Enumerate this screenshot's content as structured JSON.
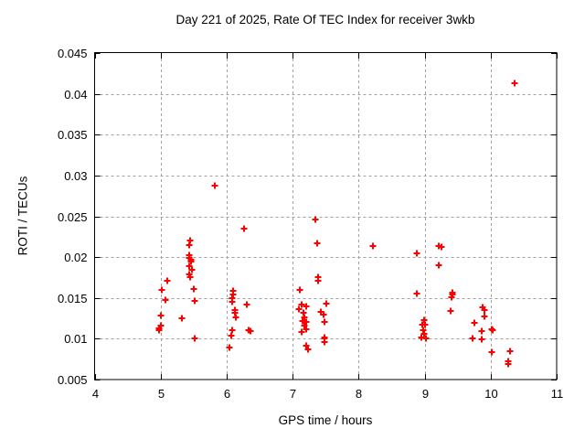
{
  "figure": {
    "title": "Day 221 of 2025, Rate Of TEC Index for receiver 3wkb",
    "xlabel": "GPS time / hours",
    "ylabel": "ROTI / TECUs"
  },
  "chart_data": {
    "type": "scatter",
    "title": "Day 221 of 2025, Rate Of TEC Index for receiver 3wkb",
    "xlabel": "GPS time / hours",
    "ylabel": "ROTI / TECUs",
    "xlim": [
      4,
      11
    ],
    "ylim": [
      0.005,
      0.045
    ],
    "x_tick_values": [
      4,
      5,
      6,
      7,
      8,
      9,
      10,
      11
    ],
    "x_tick_labels": [
      "4",
      "5",
      "6",
      "7",
      "8",
      "9",
      "10",
      "11"
    ],
    "y_tick_values": [
      0.005,
      0.01,
      0.015,
      0.02,
      0.025,
      0.03,
      0.035,
      0.04,
      0.045
    ],
    "y_tick_labels": [
      "0.005",
      "0.01",
      "0.015",
      "0.02",
      "0.025",
      "0.03",
      "0.035",
      "0.04",
      "0.045"
    ],
    "grid": true,
    "legend": "none",
    "marker": "plus",
    "marker_color": "#ff0000",
    "grid_color": "#a0a0a0",
    "border_color": "#000000",
    "series": [
      {
        "name": "ROTI",
        "points": [
          [
            4.97,
            0.0111
          ],
          [
            4.98,
            0.0113
          ],
          [
            5.01,
            0.0116
          ],
          [
            5.01,
            0.0128
          ],
          [
            5.02,
            0.016
          ],
          [
            5.08,
            0.0147
          ],
          [
            5.1,
            0.0171
          ],
          [
            5.32,
            0.0125
          ],
          [
            5.43,
            0.0202
          ],
          [
            5.44,
            0.0215
          ],
          [
            5.44,
            0.0199
          ],
          [
            5.44,
            0.0189
          ],
          [
            5.44,
            0.0179
          ],
          [
            5.45,
            0.022
          ],
          [
            5.45,
            0.0176
          ],
          [
            5.46,
            0.0197
          ],
          [
            5.46,
            0.0194
          ],
          [
            5.47,
            0.0184
          ],
          [
            5.5,
            0.0161
          ],
          [
            5.52,
            0.0146
          ],
          [
            5.51,
            0.01
          ],
          [
            5.82,
            0.0288
          ],
          [
            6.04,
            0.0089
          ],
          [
            6.07,
            0.0104
          ],
          [
            6.08,
            0.011
          ],
          [
            6.08,
            0.0145
          ],
          [
            6.09,
            0.015
          ],
          [
            6.1,
            0.0154
          ],
          [
            6.1,
            0.0159
          ],
          [
            6.13,
            0.0135
          ],
          [
            6.13,
            0.0132
          ],
          [
            6.14,
            0.0126
          ],
          [
            6.26,
            0.0235
          ],
          [
            6.3,
            0.0142
          ],
          [
            6.34,
            0.0111
          ],
          [
            6.36,
            0.0109
          ],
          [
            7.1,
            0.0136
          ],
          [
            7.11,
            0.016
          ],
          [
            7.13,
            0.0142
          ],
          [
            7.13,
            0.0108
          ],
          [
            7.15,
            0.0122
          ],
          [
            7.16,
            0.0132
          ],
          [
            7.18,
            0.0126
          ],
          [
            7.18,
            0.0116
          ],
          [
            7.2,
            0.014
          ],
          [
            7.2,
            0.0091
          ],
          [
            7.21,
            0.0121
          ],
          [
            7.21,
            0.0112
          ],
          [
            7.24,
            0.0087
          ],
          [
            7.35,
            0.0246
          ],
          [
            7.37,
            0.0217
          ],
          [
            7.39,
            0.0176
          ],
          [
            7.39,
            0.0171
          ],
          [
            7.43,
            0.0133
          ],
          [
            7.47,
            0.013
          ],
          [
            7.48,
            0.0121
          ],
          [
            7.48,
            0.0102
          ],
          [
            7.48,
            0.01
          ],
          [
            7.48,
            0.0096
          ],
          [
            7.51,
            0.0143
          ],
          [
            8.22,
            0.0214
          ],
          [
            8.88,
            0.0205
          ],
          [
            8.88,
            0.0155
          ],
          [
            8.95,
            0.0102
          ],
          [
            8.96,
            0.0117
          ],
          [
            8.98,
            0.011
          ],
          [
            8.99,
            0.0123
          ],
          [
            8.99,
            0.0106
          ],
          [
            9.01,
            0.0117
          ],
          [
            9.02,
            0.01
          ],
          [
            9.22,
            0.0214
          ],
          [
            9.26,
            0.0212
          ],
          [
            9.22,
            0.019
          ],
          [
            9.4,
            0.0134
          ],
          [
            9.41,
            0.0151
          ],
          [
            9.42,
            0.0157
          ],
          [
            9.42,
            0.0154
          ],
          [
            9.73,
            0.01
          ],
          [
            9.75,
            0.0119
          ],
          [
            9.86,
            0.0099
          ],
          [
            9.87,
            0.0109
          ],
          [
            9.88,
            0.0138
          ],
          [
            9.91,
            0.0135
          ],
          [
            9.9,
            0.0127
          ],
          [
            10.01,
            0.0112
          ],
          [
            10.03,
            0.011
          ],
          [
            10.01,
            0.0084
          ],
          [
            10.26,
            0.0072
          ],
          [
            10.27,
            0.0069
          ],
          [
            10.29,
            0.0085
          ],
          [
            10.36,
            0.0413
          ]
        ]
      }
    ]
  }
}
